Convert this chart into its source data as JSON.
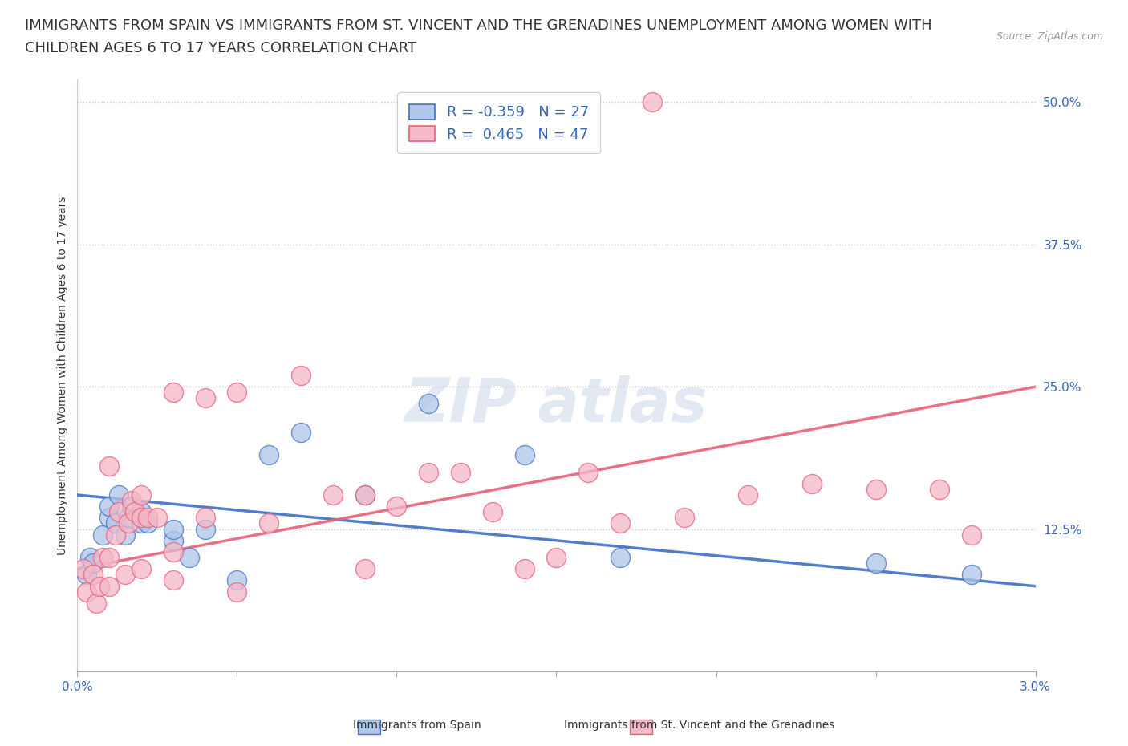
{
  "title_line1": "IMMIGRANTS FROM SPAIN VS IMMIGRANTS FROM ST. VINCENT AND THE GRENADINES UNEMPLOYMENT AMONG WOMEN WITH",
  "title_line2": "CHILDREN AGES 6 TO 17 YEARS CORRELATION CHART",
  "source": "Source: ZipAtlas.com",
  "ylabel": "Unemployment Among Women with Children Ages 6 to 17 years",
  "xmin": 0.0,
  "xmax": 0.03,
  "ymin": 0.0,
  "ymax": 0.52,
  "blue_color": "#aec6e8",
  "pink_color": "#f4b8c8",
  "blue_line_color": "#4472c4",
  "pink_line_color": "#e8607a",
  "legend_label_blue": "Immigrants from Spain",
  "legend_label_pink": "Immigrants from St. Vincent and the Grenadines",
  "blue_r": "R = -0.359",
  "blue_n": "N = 27",
  "pink_r": "R =  0.465",
  "pink_n": "N = 47",
  "blue_scatter_x": [
    0.0003,
    0.0004,
    0.0005,
    0.0008,
    0.001,
    0.001,
    0.0012,
    0.0013,
    0.0015,
    0.0016,
    0.0017,
    0.002,
    0.002,
    0.0022,
    0.003,
    0.003,
    0.0035,
    0.004,
    0.005,
    0.006,
    0.007,
    0.009,
    0.011,
    0.014,
    0.017,
    0.025,
    0.028
  ],
  "blue_scatter_y": [
    0.085,
    0.1,
    0.095,
    0.12,
    0.135,
    0.145,
    0.13,
    0.155,
    0.12,
    0.135,
    0.145,
    0.13,
    0.14,
    0.13,
    0.115,
    0.125,
    0.1,
    0.125,
    0.08,
    0.19,
    0.21,
    0.155,
    0.235,
    0.19,
    0.1,
    0.095,
    0.085
  ],
  "pink_scatter_x": [
    0.0002,
    0.0003,
    0.0005,
    0.0006,
    0.0007,
    0.0008,
    0.001,
    0.001,
    0.001,
    0.0012,
    0.0013,
    0.0015,
    0.0016,
    0.0017,
    0.0018,
    0.002,
    0.002,
    0.002,
    0.0022,
    0.0025,
    0.003,
    0.003,
    0.003,
    0.004,
    0.004,
    0.005,
    0.005,
    0.006,
    0.007,
    0.008,
    0.009,
    0.009,
    0.01,
    0.011,
    0.012,
    0.013,
    0.014,
    0.015,
    0.016,
    0.017,
    0.018,
    0.019,
    0.021,
    0.023,
    0.025,
    0.027,
    0.028
  ],
  "pink_scatter_y": [
    0.09,
    0.07,
    0.085,
    0.06,
    0.075,
    0.1,
    0.1,
    0.18,
    0.075,
    0.12,
    0.14,
    0.085,
    0.13,
    0.15,
    0.14,
    0.135,
    0.155,
    0.09,
    0.135,
    0.135,
    0.105,
    0.08,
    0.245,
    0.135,
    0.24,
    0.07,
    0.245,
    0.13,
    0.26,
    0.155,
    0.09,
    0.155,
    0.145,
    0.175,
    0.175,
    0.14,
    0.09,
    0.1,
    0.175,
    0.13,
    0.5,
    0.135,
    0.155,
    0.165,
    0.16,
    0.16,
    0.12
  ],
  "background_color": "#ffffff",
  "grid_color": "#c8c8c8",
  "watermark_text": "ZIPatlas",
  "title_fontsize": 13,
  "tick_fontsize": 11,
  "legend_fontsize": 13
}
